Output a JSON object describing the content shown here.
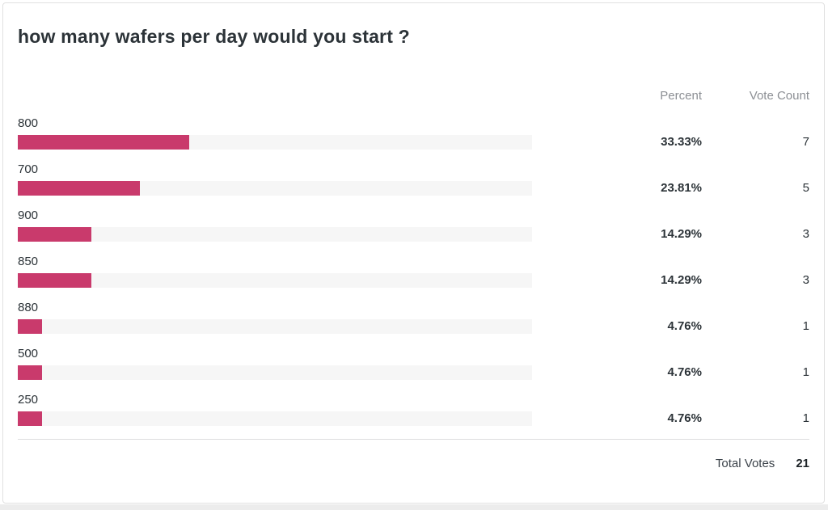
{
  "poll": {
    "title": "how many wafers per day would you start ?",
    "columns": {
      "percent": "Percent",
      "vote_count": "Vote Count"
    },
    "answers": [
      {
        "label": "800",
        "percent": "33.33%",
        "votes": "7",
        "pct": 33.33
      },
      {
        "label": "700",
        "percent": "23.81%",
        "votes": "5",
        "pct": 23.81
      },
      {
        "label": "900",
        "percent": "14.29%",
        "votes": "3",
        "pct": 14.29
      },
      {
        "label": "850",
        "percent": "14.29%",
        "votes": "3",
        "pct": 14.29
      },
      {
        "label": "880",
        "percent": "4.76%",
        "votes": "1",
        "pct": 4.76
      },
      {
        "label": "500",
        "percent": "4.76%",
        "votes": "1",
        "pct": 4.76
      },
      {
        "label": "250",
        "percent": "4.76%",
        "votes": "1",
        "pct": 4.76
      }
    ],
    "total": {
      "label": "Total Votes",
      "value": "21"
    },
    "colors": {
      "bar": "#c93a6c",
      "track": "#f6f6f6",
      "title_text": "#2c3338",
      "header_text": "#8c8f94"
    }
  },
  "chart_data": {
    "type": "bar",
    "orientation": "horizontal",
    "title": "how many wafers per day would you start ?",
    "categories": [
      "800",
      "700",
      "900",
      "850",
      "880",
      "500",
      "250"
    ],
    "series": [
      {
        "name": "Percent",
        "values": [
          33.33,
          23.81,
          14.29,
          14.29,
          4.76,
          4.76,
          4.76
        ]
      },
      {
        "name": "Vote Count",
        "values": [
          7,
          5,
          3,
          3,
          1,
          1,
          1
        ]
      }
    ],
    "total_votes": 21,
    "xlim": [
      0,
      100
    ],
    "grid": false,
    "legend": false,
    "bar_color": "#c93a6c"
  }
}
